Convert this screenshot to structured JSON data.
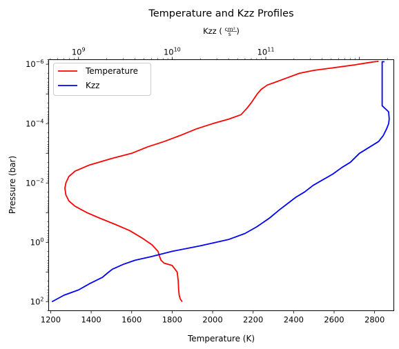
{
  "chart_data": {
    "type": "line",
    "title": "Temperature and Kzz Profiles",
    "xlabel": "Temperature (K)",
    "ylabel": "Pressure (bar)",
    "top_xlabel_base": "Kzz (",
    "top_xlabel_num": "cm²",
    "top_xlabel_den": "s",
    "top_xlabel_close": ")",
    "xlim": [
      1190,
      2895
    ],
    "x_ticks": [
      1200,
      1400,
      1600,
      1800,
      2000,
      2200,
      2400,
      2600,
      2800
    ],
    "y_scale": "log",
    "y_inverted": true,
    "ylim": [
      200,
      7e-07
    ],
    "y_ticks": [
      {
        "base": "10",
        "exp": "−6",
        "value": 1e-06
      },
      {
        "base": "10",
        "exp": "−4",
        "value": 0.0001
      },
      {
        "base": "10",
        "exp": "−2",
        "value": 0.01
      },
      {
        "base": "10",
        "exp": "0",
        "value": 1
      },
      {
        "base": "10",
        "exp": "2",
        "value": 100
      }
    ],
    "top_x_scale": "log",
    "top_xlim": [
      480000000,
      2330000000000
    ],
    "top_x_ticks": [
      {
        "base": "10",
        "exp": "9",
        "value": 1000000000
      },
      {
        "base": "10",
        "exp": "10",
        "value": 10000000000
      },
      {
        "base": "10",
        "exp": "11",
        "value": 100000000000
      }
    ],
    "legend_position": "upper-left",
    "series": [
      {
        "name": "Temperature",
        "color": "#ff0000",
        "axis": "bottom",
        "points": [
          [
            1850,
            100
          ],
          [
            1840,
            80
          ],
          [
            1835,
            60
          ],
          [
            1832,
            40
          ],
          [
            1830,
            20
          ],
          [
            1825,
            10
          ],
          [
            1800,
            6
          ],
          [
            1760,
            5
          ],
          [
            1745,
            4
          ],
          [
            1738,
            3
          ],
          [
            1730,
            2
          ],
          [
            1700,
            1.2
          ],
          [
            1650,
            0.7
          ],
          [
            1590,
            0.4
          ],
          [
            1520,
            0.25
          ],
          [
            1440,
            0.15
          ],
          [
            1380,
            0.1
          ],
          [
            1320,
            0.06
          ],
          [
            1290,
            0.04
          ],
          [
            1275,
            0.025
          ],
          [
            1270,
            0.015
          ],
          [
            1275,
            0.01
          ],
          [
            1290,
            0.006
          ],
          [
            1320,
            0.004
          ],
          [
            1390,
            0.0025
          ],
          [
            1500,
            0.0015
          ],
          [
            1600,
            0.001
          ],
          [
            1680,
            0.0006
          ],
          [
            1760,
            0.0004
          ],
          [
            1840,
            0.00025
          ],
          [
            1920,
            0.00015
          ],
          [
            2000,
            0.0001
          ],
          [
            2080,
            7e-05
          ],
          [
            2140,
            5e-05
          ],
          [
            2170,
            3e-05
          ],
          [
            2190,
            2e-05
          ],
          [
            2220,
            1e-05
          ],
          [
            2240,
            7e-06
          ],
          [
            2270,
            5e-06
          ],
          [
            2310,
            4e-06
          ],
          [
            2360,
            3e-06
          ],
          [
            2430,
            2e-06
          ],
          [
            2500,
            1.6e-06
          ],
          [
            2600,
            1.3e-06
          ],
          [
            2700,
            1.05e-06
          ],
          [
            2770,
            8.8e-07
          ],
          [
            2800,
            8.2e-07
          ],
          [
            2820,
            8e-07
          ]
        ]
      },
      {
        "name": "Kzz",
        "color": "#0000ff",
        "axis": "top",
        "points": [
          [
            520000000,
            100
          ],
          [
            700000000,
            60
          ],
          [
            1000000000,
            40
          ],
          [
            1300000000,
            25
          ],
          [
            1800000000,
            15
          ],
          [
            2100000000,
            10
          ],
          [
            2300000000,
            8
          ],
          [
            3000000000,
            5.5
          ],
          [
            4000000000,
            4
          ],
          [
            6000000000,
            3
          ],
          [
            10000000000,
            2
          ],
          [
            20000000000,
            1.3
          ],
          [
            40000000000,
            0.8
          ],
          [
            60000000000,
            0.5
          ],
          [
            80000000000,
            0.3
          ],
          [
            110000000000,
            0.15
          ],
          [
            140000000000,
            0.08
          ],
          [
            170000000000,
            0.05
          ],
          [
            210000000000,
            0.03
          ],
          [
            260000000000,
            0.02
          ],
          [
            320000000000,
            0.012
          ],
          [
            400000000000,
            0.008
          ],
          [
            520000000000,
            0.005
          ],
          [
            650000000000,
            0.003
          ],
          [
            800000000000,
            0.002
          ],
          [
            1000000000000,
            0.001
          ],
          [
            1300000000000,
            0.0006
          ],
          [
            1600000000000,
            0.0004
          ],
          [
            1800000000000,
            0.00025
          ],
          [
            1950000000000,
            0.00015
          ],
          [
            2050000000000,
            0.0001
          ],
          [
            2080000000000,
            7e-05
          ],
          [
            2050000000000,
            4e-05
          ],
          [
            1750000000000,
            2.5e-05
          ],
          [
            1750000000000,
            8.2e-07
          ],
          [
            1850000000000,
            8.2e-07
          ]
        ]
      }
    ]
  }
}
